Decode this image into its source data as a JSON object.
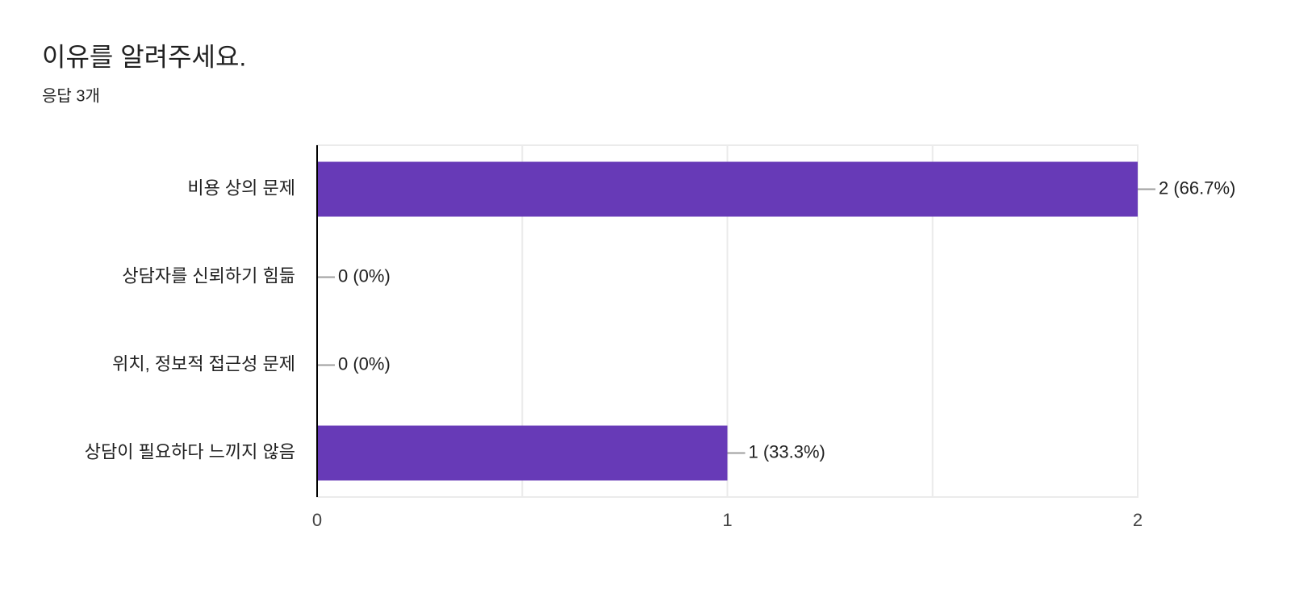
{
  "chart_data": {
    "type": "bar",
    "orientation": "horizontal",
    "title": "이유를 알려주세요.",
    "subtitle": "응답 3개",
    "categories": [
      "비용 상의 문제",
      "상담자를 신뢰하기 힘듦",
      "위치, 정보적 접근성 문제",
      "상담이 필요하다 느끼지 않음"
    ],
    "values": [
      2,
      0,
      0,
      1
    ],
    "value_labels": [
      "2 (66.7%)",
      "0 (0%)",
      "0 (0%)",
      "1 (33.3%)"
    ],
    "color": "#673ab7",
    "xlim": [
      0,
      2
    ],
    "xticks": [
      0,
      1,
      2
    ],
    "minor_xticks": [
      0.5,
      1.5
    ],
    "grid": true
  }
}
